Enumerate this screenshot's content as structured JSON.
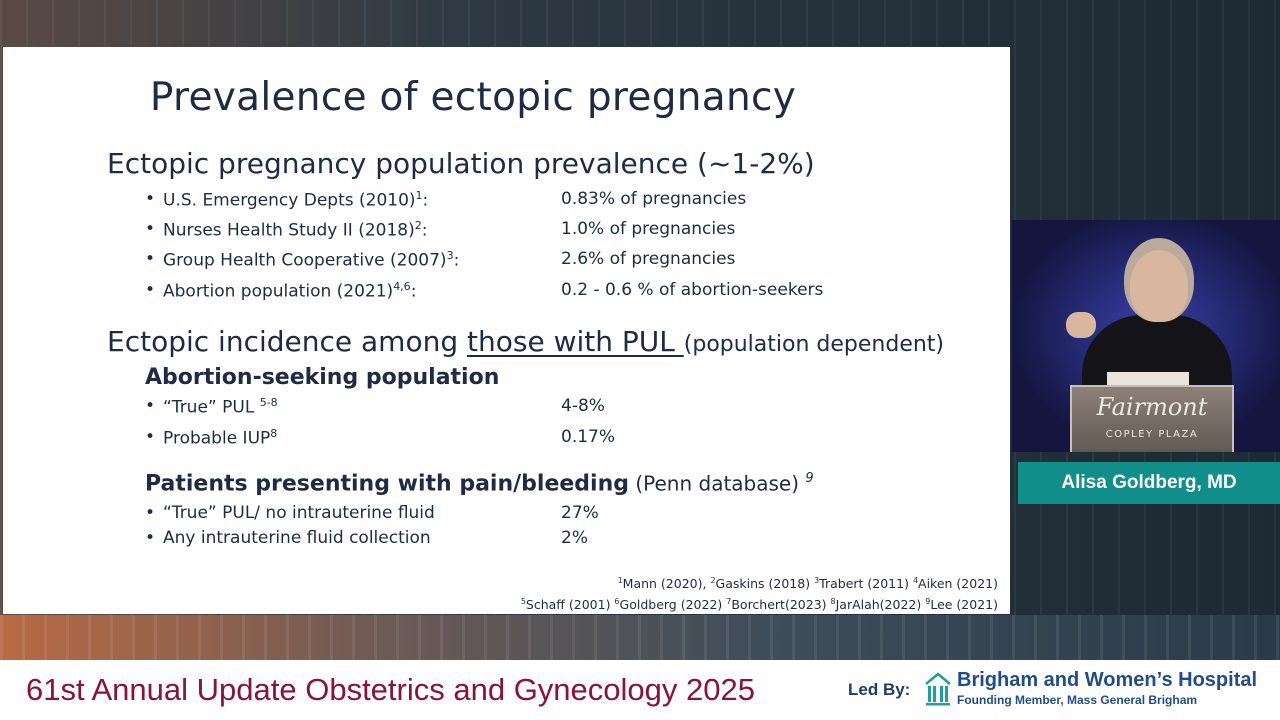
{
  "slide": {
    "title": "Prevalence of ectopic pregnancy",
    "section1": {
      "heading": "Ectopic pregnancy population prevalence (~1-2%)",
      "rows": [
        {
          "label": "U.S. Emergency Depts (2010)",
          "sup": "1",
          "suffix": ":",
          "value": "0.83% of pregnancies"
        },
        {
          "label": "Nurses Health Study II (2018)",
          "sup": "2",
          "suffix": ":",
          "value": "1.0% of pregnancies"
        },
        {
          "label": "Group Health Cooperative (2007)",
          "sup": "3",
          "suffix": ":",
          "value": "2.6% of pregnancies"
        },
        {
          "label": "Abortion population (2021)",
          "sup": "4,6",
          "suffix": ":",
          "value": "0.2 - 0.6 % of abortion-seekers"
        }
      ]
    },
    "section2": {
      "heading_prefix": "Ectopic incidence among ",
      "heading_underlined": "those with PUL ",
      "heading_note": "(population dependent)",
      "sub1": {
        "heading": "Abortion-seeking population",
        "rows": [
          {
            "label": "“True” PUL ",
            "sup": "5-8",
            "suffix": "",
            "value": "4-8%"
          },
          {
            "label": "Probable IUP",
            "sup": "8",
            "suffix": "",
            "value": "0.17%"
          }
        ]
      },
      "sub2": {
        "heading": "Patients presenting with pain/bleeding",
        "note": " (Penn database) ",
        "sup": "9",
        "rows": [
          {
            "label": "“True” PUL/ no intrauterine fluid",
            "value": "27%"
          },
          {
            "label": "Any intrauterine fluid collection",
            "value": " 2%"
          }
        ]
      }
    },
    "references": {
      "line1": [
        {
          "sup": "1",
          "text": "Mann (2020), "
        },
        {
          "sup": "2",
          "text": "Gaskins (2018) "
        },
        {
          "sup": "3",
          "text": "Trabert (2011) "
        },
        {
          "sup": "4",
          "text": "Aiken (2021)"
        }
      ],
      "line2": [
        {
          "sup": "5",
          "text": "Schaff (2001) "
        },
        {
          "sup": "6",
          "text": "Goldberg (2022) "
        },
        {
          "sup": "7",
          "text": "Borchert(2023) "
        },
        {
          "sup": "8",
          "text": "JarAlah(2022) "
        },
        {
          "sup": "9",
          "text": "Lee (2021)"
        }
      ]
    },
    "bullet": "•"
  },
  "speaker": {
    "name": "Alisa Goldberg, MD",
    "podium_logo": "Fairmont",
    "podium_sub": "COPLEY PLAZA"
  },
  "footer": {
    "title": "61st Annual Update Obstetrics and Gynecology 2025",
    "led_by": "Led By:",
    "org_name": "Brigham and Women’s Hospital",
    "org_sub": "Founding Member, Mass General Brigham",
    "title_color": "#8c1238",
    "org_color": "#1f4c8f",
    "banner_color": "#0f8e8a"
  }
}
